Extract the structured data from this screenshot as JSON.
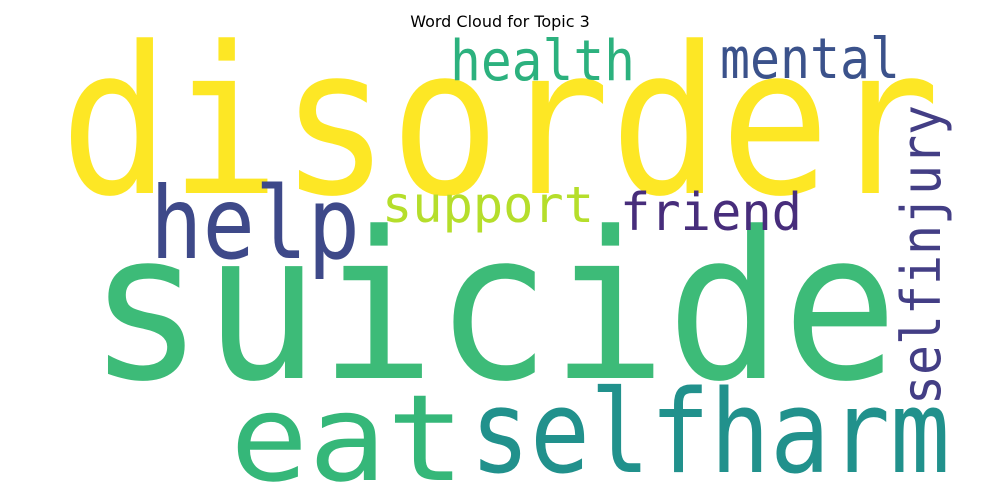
{
  "title": "Word Cloud for Topic 3",
  "words": [
    {
      "id": "disorder",
      "text": "disorder",
      "color": "#fde725"
    },
    {
      "id": "suicide",
      "text": "suicide",
      "color": "#3dbb78"
    },
    {
      "id": "selfharm",
      "text": "selfharm",
      "color": "#21918c"
    },
    {
      "id": "eat",
      "text": "eat",
      "color": "#35b779"
    },
    {
      "id": "help",
      "text": "help",
      "color": "#3e4989"
    },
    {
      "id": "health",
      "text": "health",
      "color": "#2cb17e"
    },
    {
      "id": "mental",
      "text": "mental",
      "color": "#3b528b"
    },
    {
      "id": "support",
      "text": "support",
      "color": "#b5de2b"
    },
    {
      "id": "friend",
      "text": "friend",
      "color": "#472d7b"
    },
    {
      "id": "selfinjury",
      "text": "selfinjury",
      "color": "#433e85"
    }
  ]
}
